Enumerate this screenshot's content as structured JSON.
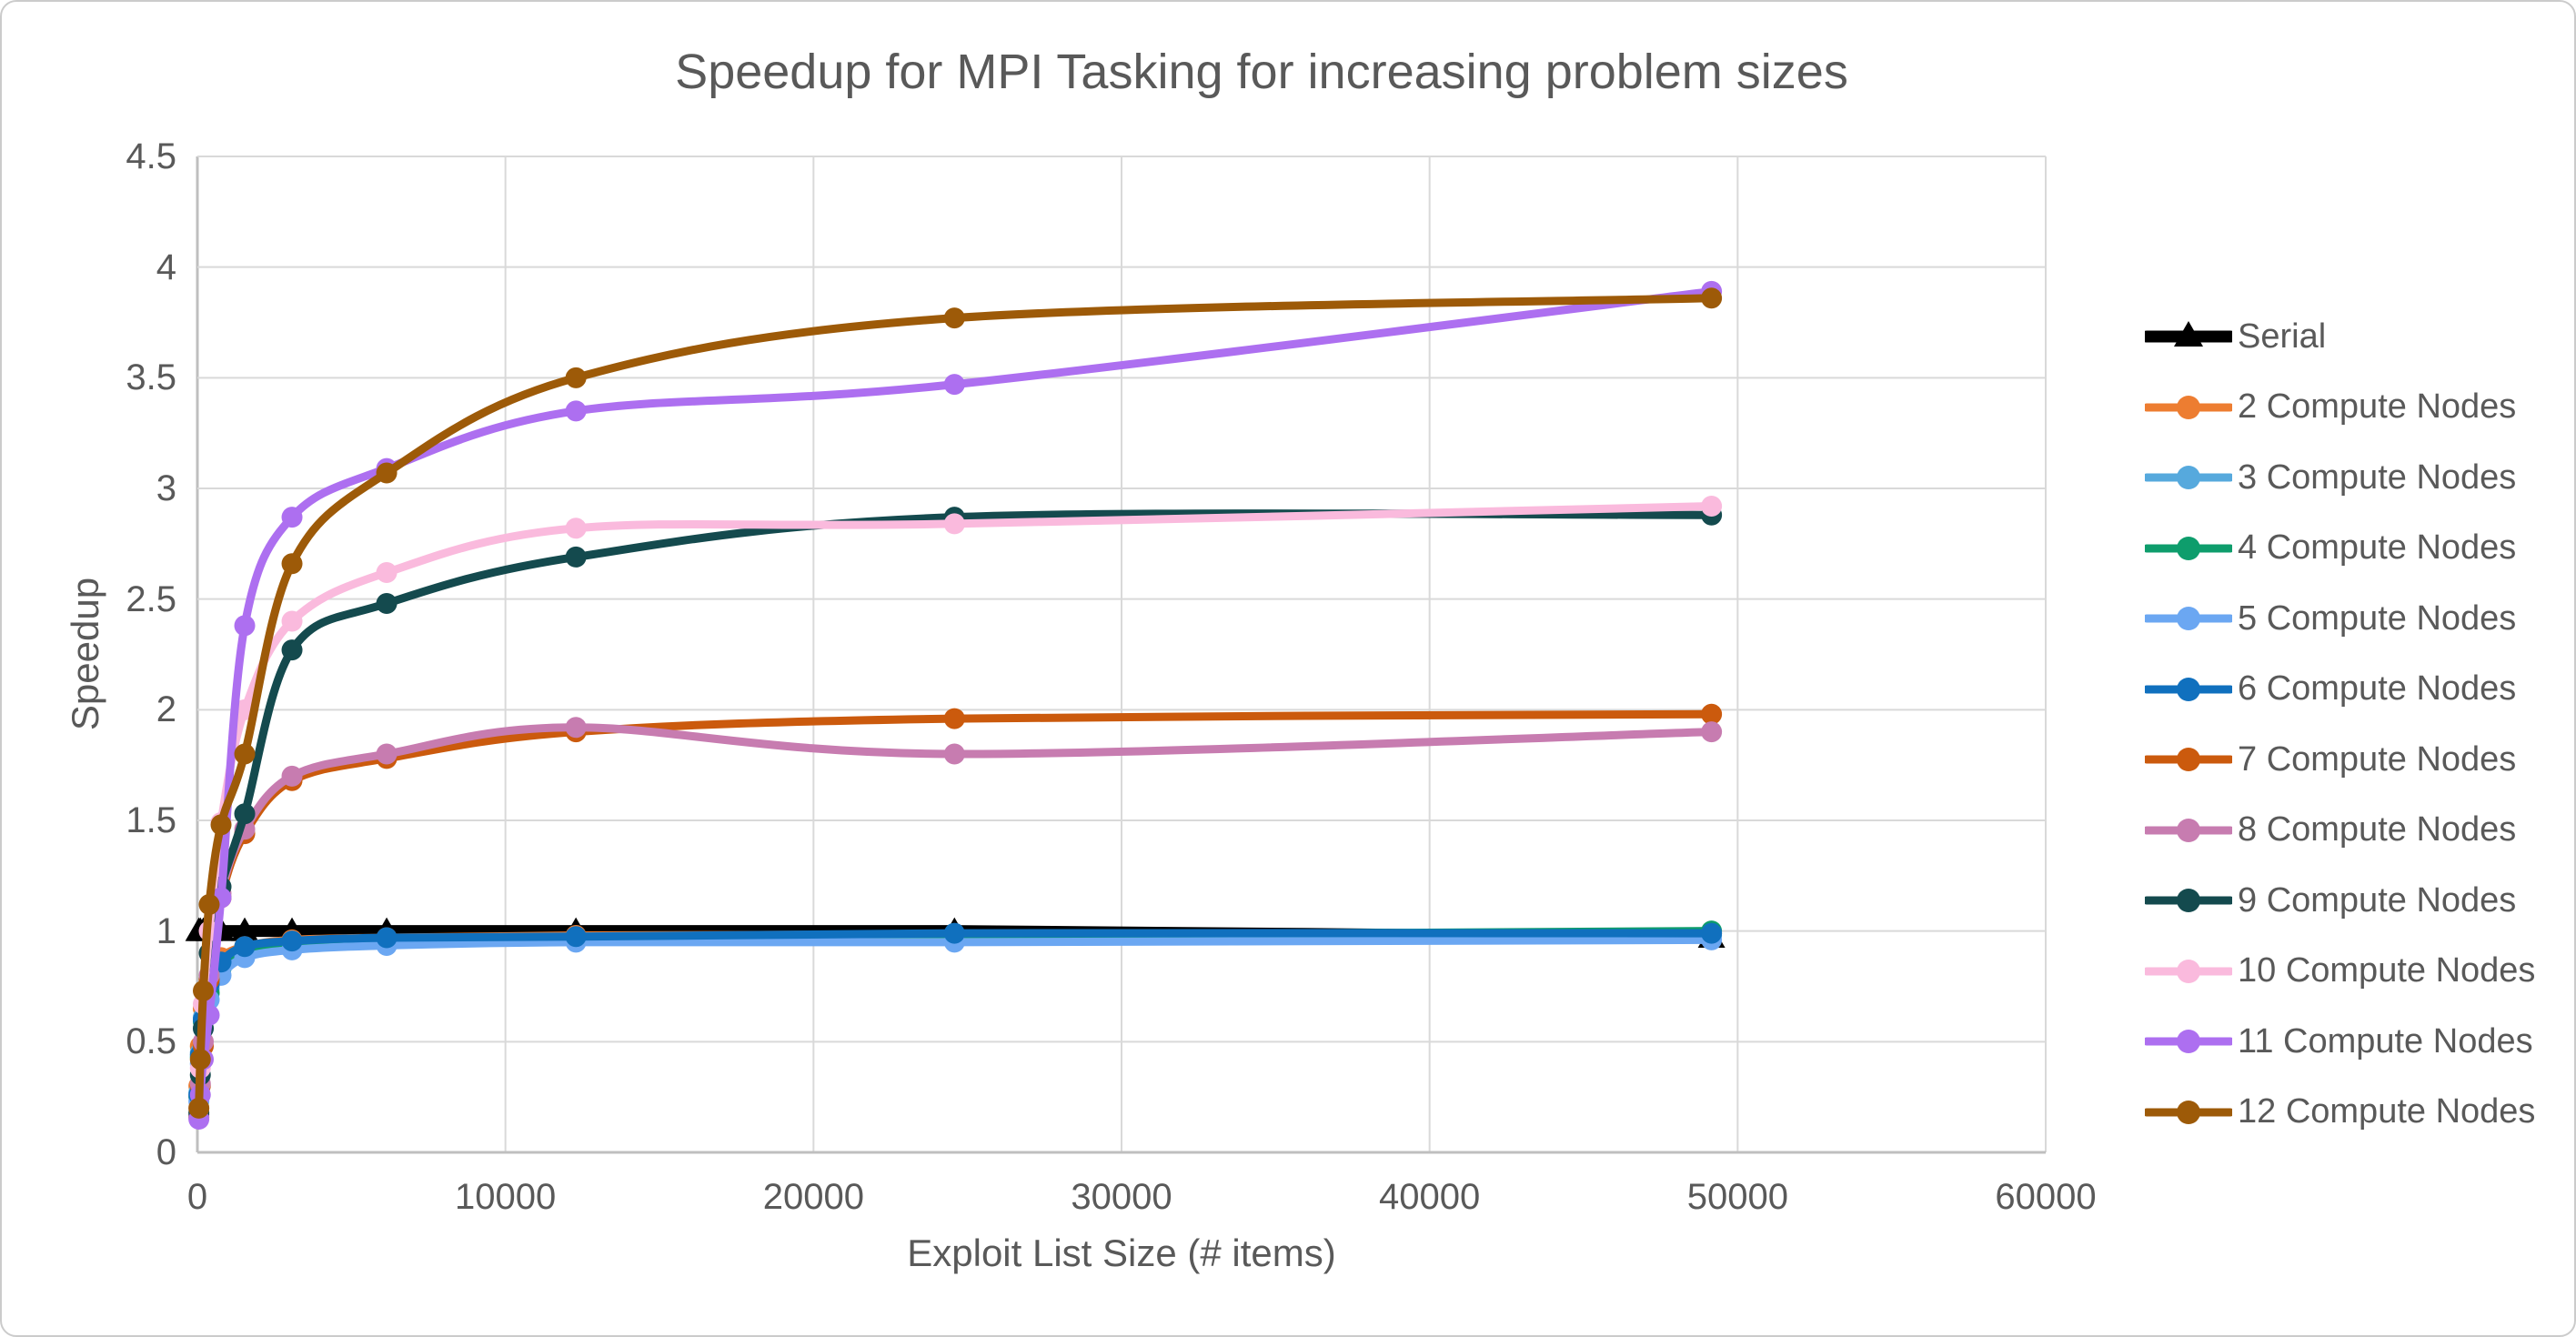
{
  "title": "Speedup for MPI Tasking for increasing problem sizes",
  "colors": {
    "text": "#595959",
    "gridline": "#d9d9d9",
    "axis_line": "#bfbfbf",
    "background": "#ffffff",
    "card_border": "#cbcbcb"
  },
  "chart_data": {
    "type": "line",
    "title": "Speedup for MPI Tasking for increasing problem sizes",
    "xlabel": "Exploit List Size (# items)",
    "ylabel": "Speedup",
    "xlim": [
      0,
      60000
    ],
    "ylim": [
      0,
      4.5
    ],
    "grid": true,
    "legend_position": "right",
    "x_ticks": [
      {
        "value": 0,
        "label": "0"
      },
      {
        "value": 10000,
        "label": "10000"
      },
      {
        "value": 20000,
        "label": "20000"
      },
      {
        "value": 30000,
        "label": "30000"
      },
      {
        "value": 40000,
        "label": "40000"
      },
      {
        "value": 50000,
        "label": "50000"
      },
      {
        "value": 60000,
        "label": "60000"
      }
    ],
    "y_ticks": [
      {
        "value": 0,
        "label": "0"
      },
      {
        "value": 0.5,
        "label": "0.5"
      },
      {
        "value": 1,
        "label": "1"
      },
      {
        "value": 1.5,
        "label": "1.5"
      },
      {
        "value": 2,
        "label": "2"
      },
      {
        "value": 2.5,
        "label": "2.5"
      },
      {
        "value": 3,
        "label": "3"
      },
      {
        "value": 3.5,
        "label": "3.5"
      },
      {
        "value": 4,
        "label": "4"
      },
      {
        "value": 4.5,
        "label": "4.5"
      }
    ],
    "x": [
      48,
      96,
      192,
      384,
      768,
      1536,
      3072,
      6144,
      12288,
      24576,
      49152
    ],
    "series": [
      {
        "name": "Serial",
        "color": "#000000",
        "marker": "triangle",
        "values": [
          1.0,
          1.0,
          1.0,
          1.0,
          1.0,
          1.0,
          1.0,
          1.0,
          1.0,
          1.0,
          0.97
        ]
      },
      {
        "name": "2 Compute Nodes",
        "color": "#ED7D31",
        "marker": "circle",
        "values": [
          0.3,
          0.48,
          0.65,
          0.78,
          0.88,
          0.93,
          0.96,
          0.97,
          0.98,
          0.985,
          0.99
        ]
      },
      {
        "name": "3 Compute Nodes",
        "color": "#56A9DD",
        "marker": "circle",
        "values": [
          0.27,
          0.45,
          0.61,
          0.74,
          0.85,
          0.91,
          0.94,
          0.955,
          0.965,
          0.975,
          0.98
        ]
      },
      {
        "name": "4 Compute Nodes",
        "color": "#0E9D6C",
        "marker": "circle",
        "values": [
          0.25,
          0.43,
          0.59,
          0.72,
          0.83,
          0.9,
          0.93,
          0.95,
          0.965,
          0.98,
          1.0
        ]
      },
      {
        "name": "5 Compute Nodes",
        "color": "#6BA7F2",
        "marker": "circle",
        "values": [
          0.23,
          0.4,
          0.56,
          0.69,
          0.8,
          0.88,
          0.915,
          0.935,
          0.95,
          0.95,
          0.96
        ]
      },
      {
        "name": "6 Compute Nodes",
        "color": "#1070BE",
        "marker": "circle",
        "values": [
          0.26,
          0.44,
          0.6,
          0.76,
          0.86,
          0.93,
          0.955,
          0.97,
          0.975,
          0.99,
          0.99
        ]
      },
      {
        "name": "7 Compute Nodes",
        "color": "#CB5A0D",
        "marker": "circle",
        "values": [
          0.16,
          0.3,
          0.48,
          0.78,
          1.15,
          1.44,
          1.68,
          1.78,
          1.9,
          1.96,
          1.98
        ]
      },
      {
        "name": "8 Compute Nodes",
        "color": "#C77CB0",
        "marker": "circle",
        "values": [
          0.17,
          0.31,
          0.5,
          0.8,
          1.17,
          1.46,
          1.7,
          1.8,
          1.92,
          1.8,
          1.9
        ]
      },
      {
        "name": "9 Compute Nodes",
        "color": "#144A4E",
        "marker": "circle",
        "values": [
          0.18,
          0.35,
          0.56,
          0.9,
          1.2,
          1.53,
          2.27,
          2.48,
          2.69,
          2.87,
          2.88
        ]
      },
      {
        "name": "10 Compute Nodes",
        "color": "#FABADD",
        "marker": "circle",
        "values": [
          0.2,
          0.38,
          0.67,
          1.0,
          1.49,
          2.0,
          2.4,
          2.62,
          2.82,
          2.84,
          2.92
        ]
      },
      {
        "name": "11 Compute Nodes",
        "color": "#AD6FF0",
        "marker": "circle",
        "values": [
          0.15,
          0.26,
          0.42,
          0.62,
          1.15,
          2.38,
          2.87,
          3.09,
          3.35,
          3.47,
          3.89
        ]
      },
      {
        "name": "12 Compute Nodes",
        "color": "#9D5A08",
        "marker": "circle",
        "values": [
          0.2,
          0.42,
          0.73,
          1.12,
          1.48,
          1.8,
          2.66,
          3.07,
          3.5,
          3.77,
          3.86
        ]
      }
    ]
  }
}
